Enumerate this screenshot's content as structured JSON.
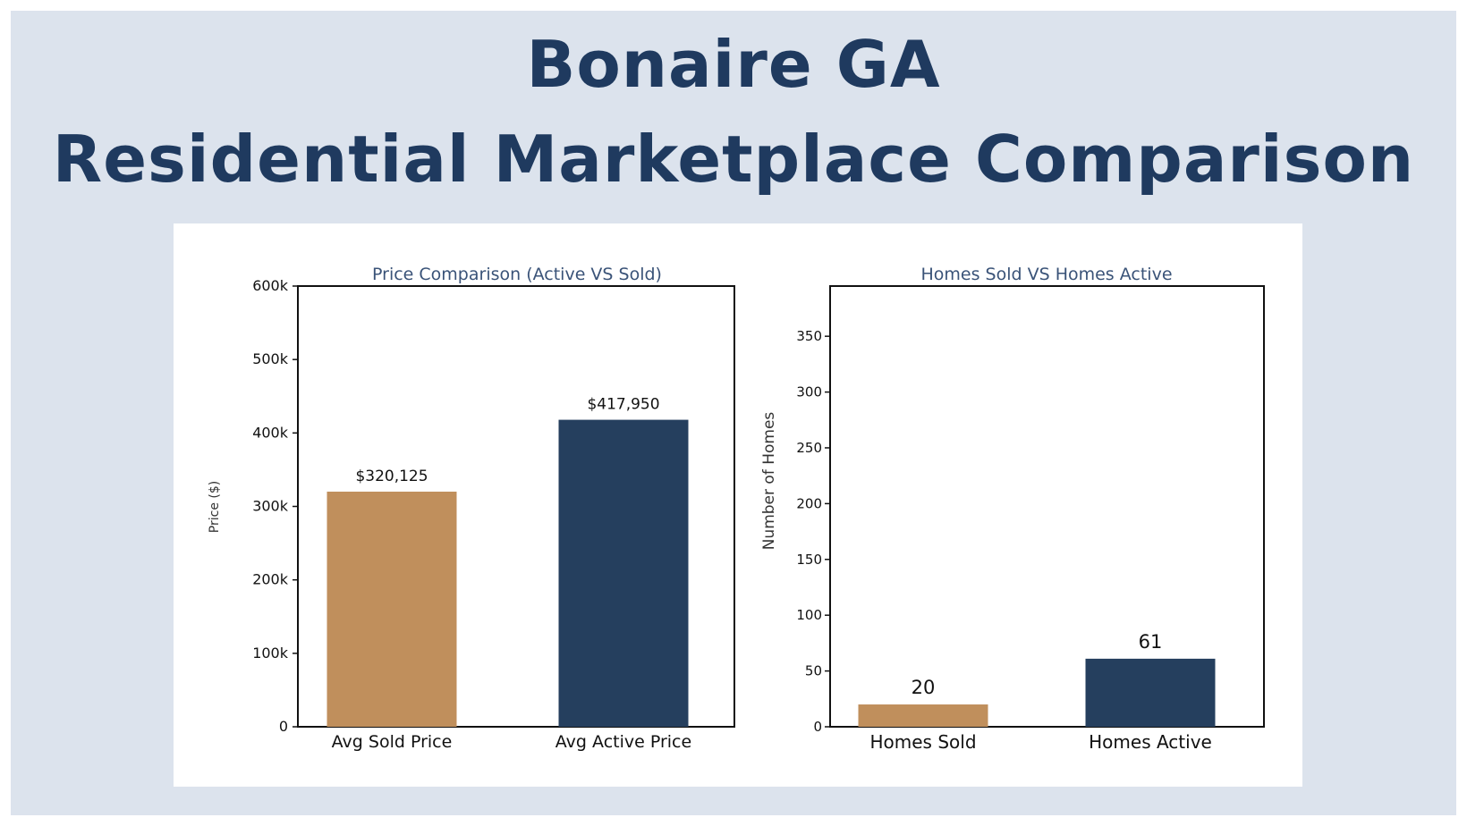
{
  "page": {
    "title_line1": "Bonaire GA",
    "title_line2": "Residential Marketplace Comparison"
  },
  "colors": {
    "page_background": "#dce3ed",
    "title": "#1f3a5f",
    "sold": "#c08f5c",
    "active": "#253f5e",
    "chart_title": "#3a5378"
  },
  "chart_data": [
    {
      "type": "bar",
      "title": "Price Comparison (Active VS Sold)",
      "xlabel": "",
      "ylabel": "Price ($)",
      "categories": [
        "Avg Sold Price",
        "Avg Active Price"
      ],
      "values": [
        320125,
        417950
      ],
      "value_labels": [
        "$320,125",
        "$417,950"
      ],
      "bar_colors": [
        "#c08f5c",
        "#253f5e"
      ],
      "ylim": [
        0,
        600000
      ],
      "yticks": [
        0,
        100000,
        200000,
        300000,
        400000,
        500000,
        600000
      ],
      "ytick_labels": [
        "0",
        "100k",
        "200k",
        "300k",
        "400k",
        "500k",
        "600k"
      ],
      "grid": false,
      "legend": false
    },
    {
      "type": "bar",
      "title": "Homes Sold VS Homes Active",
      "xlabel": "",
      "ylabel": "Number of Homes",
      "categories": [
        "Homes Sold",
        "Homes Active"
      ],
      "values": [
        20,
        61
      ],
      "value_labels": [
        "20",
        "61"
      ],
      "bar_colors": [
        "#c08f5c",
        "#253f5e"
      ],
      "ylim": [
        0,
        395
      ],
      "yticks": [
        0,
        50,
        100,
        150,
        200,
        250,
        300,
        350
      ],
      "ytick_labels": [
        "0",
        "50",
        "100",
        "150",
        "200",
        "250",
        "300",
        "350"
      ],
      "grid": false,
      "legend": false
    }
  ]
}
